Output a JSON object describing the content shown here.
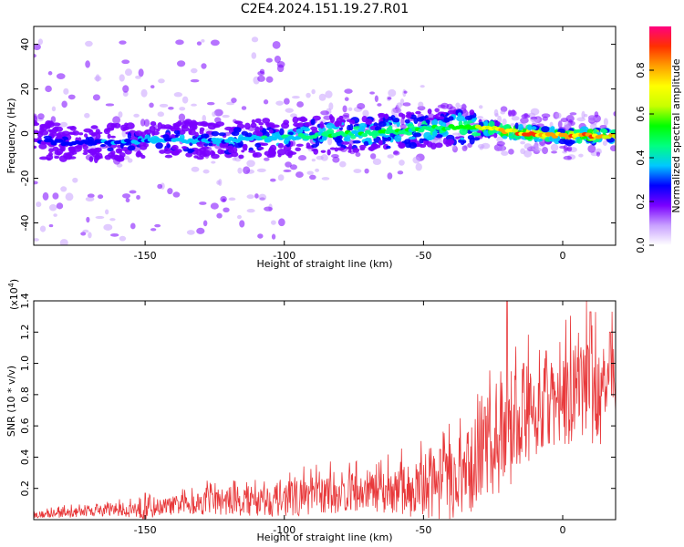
{
  "figure": {
    "title": "C2E4.2024.151.19.27.R01"
  },
  "chart_data": [
    {
      "type": "heatmap",
      "xlabel": "Height of straight line (km)",
      "ylabel": "Frequency (Hz)",
      "xlim": [
        -190,
        19
      ],
      "ylim": [
        -50,
        48
      ],
      "xticks": [
        -150,
        -100,
        -50,
        0
      ],
      "yticks": [
        -40,
        -20,
        0,
        20,
        40
      ],
      "colorbar": {
        "label": "Normalized spectral amplitude",
        "range": [
          0.0,
          1.0
        ],
        "ticks": [
          0.0,
          0.2,
          0.4,
          0.6,
          0.8
        ],
        "tick_labels": [
          "0.0",
          "0.2",
          "0.4",
          "0.6",
          "0.8"
        ],
        "colormap": [
          "#ffffff",
          "#c8a0ff",
          "#7a00ff",
          "#0000ff",
          "#00c8ff",
          "#00ff80",
          "#00ff00",
          "#c8ff00",
          "#ffff00",
          "#ffa000",
          "#ff3000",
          "#ff0080"
        ]
      },
      "ridge": {
        "x": [
          -190,
          -180,
          -170,
          -160,
          -150,
          -140,
          -130,
          -120,
          -110,
          -100,
          -90,
          -80,
          -70,
          -60,
          -50,
          -40,
          -30,
          -20,
          -10,
          0,
          10,
          19
        ],
        "frequency": [
          -3,
          -4,
          -4,
          -4,
          -3,
          -3,
          -3,
          -3,
          -2,
          -2,
          -1,
          0,
          0,
          1,
          2,
          3,
          3,
          1,
          0,
          -1,
          -1,
          -1
        ],
        "amplitude": [
          0.25,
          0.3,
          0.32,
          0.35,
          0.38,
          0.38,
          0.4,
          0.4,
          0.42,
          0.45,
          0.48,
          0.52,
          0.55,
          0.55,
          0.52,
          0.55,
          0.7,
          0.85,
          0.95,
          0.95,
          0.9,
          0.85
        ]
      }
    },
    {
      "type": "line",
      "xlabel": "Height of straight line (km)",
      "ylabel": "SNR (10 * v/v)",
      "y_multiplier": "(x10",
      "y_multiplier_exp": "4",
      "y_multiplier_close": ")",
      "xlim": [
        -190,
        19
      ],
      "ylim": [
        0,
        1.4
      ],
      "xticks": [
        -150,
        -100,
        -50,
        0
      ],
      "yticks": [
        0.2,
        0.4,
        0.6,
        0.8,
        1.0,
        1.2,
        1.4
      ],
      "ytick_labels": [
        "0.2",
        "0.4",
        "0.6",
        "0.8",
        "1.0",
        "1.2",
        "1.4"
      ],
      "color": "#e8383a",
      "series": [
        {
          "x": [
            -190,
            -180,
            -170,
            -160,
            -152,
            -150,
            -145,
            -140,
            -130,
            -120,
            -110,
            -100,
            -90,
            -80,
            -70,
            -60,
            -50,
            -40,
            -35,
            -30,
            -25,
            -22,
            -20,
            -15,
            -10,
            -5,
            0,
            5,
            10,
            12,
            15,
            19
          ],
          "baseline": [
            0.03,
            0.04,
            0.05,
            0.06,
            0.07,
            0.08,
            0.08,
            0.09,
            0.11,
            0.12,
            0.12,
            0.13,
            0.15,
            0.16,
            0.17,
            0.18,
            0.2,
            0.24,
            0.28,
            0.35,
            0.42,
            0.5,
            0.55,
            0.62,
            0.7,
            0.72,
            0.75,
            0.8,
            0.85,
            0.7,
            0.85,
            0.9
          ],
          "spread": [
            0.02,
            0.03,
            0.03,
            0.04,
            0.06,
            0.1,
            0.05,
            0.06,
            0.08,
            0.09,
            0.1,
            0.11,
            0.12,
            0.12,
            0.12,
            0.14,
            0.2,
            0.25,
            0.28,
            0.3,
            0.32,
            0.4,
            0.4,
            0.3,
            0.3,
            0.28,
            0.3,
            0.3,
            0.32,
            0.35,
            0.25,
            0.25
          ],
          "peaks": [
            [
              -150,
              0.17
            ],
            [
              -44,
              0.45
            ],
            [
              -28,
              0.72
            ],
            [
              -20,
              1.4
            ],
            [
              -14,
              1.0
            ],
            [
              -6,
              1.08
            ],
            [
              10,
              1.33
            ],
            [
              17,
              1.2
            ]
          ]
        }
      ]
    }
  ]
}
